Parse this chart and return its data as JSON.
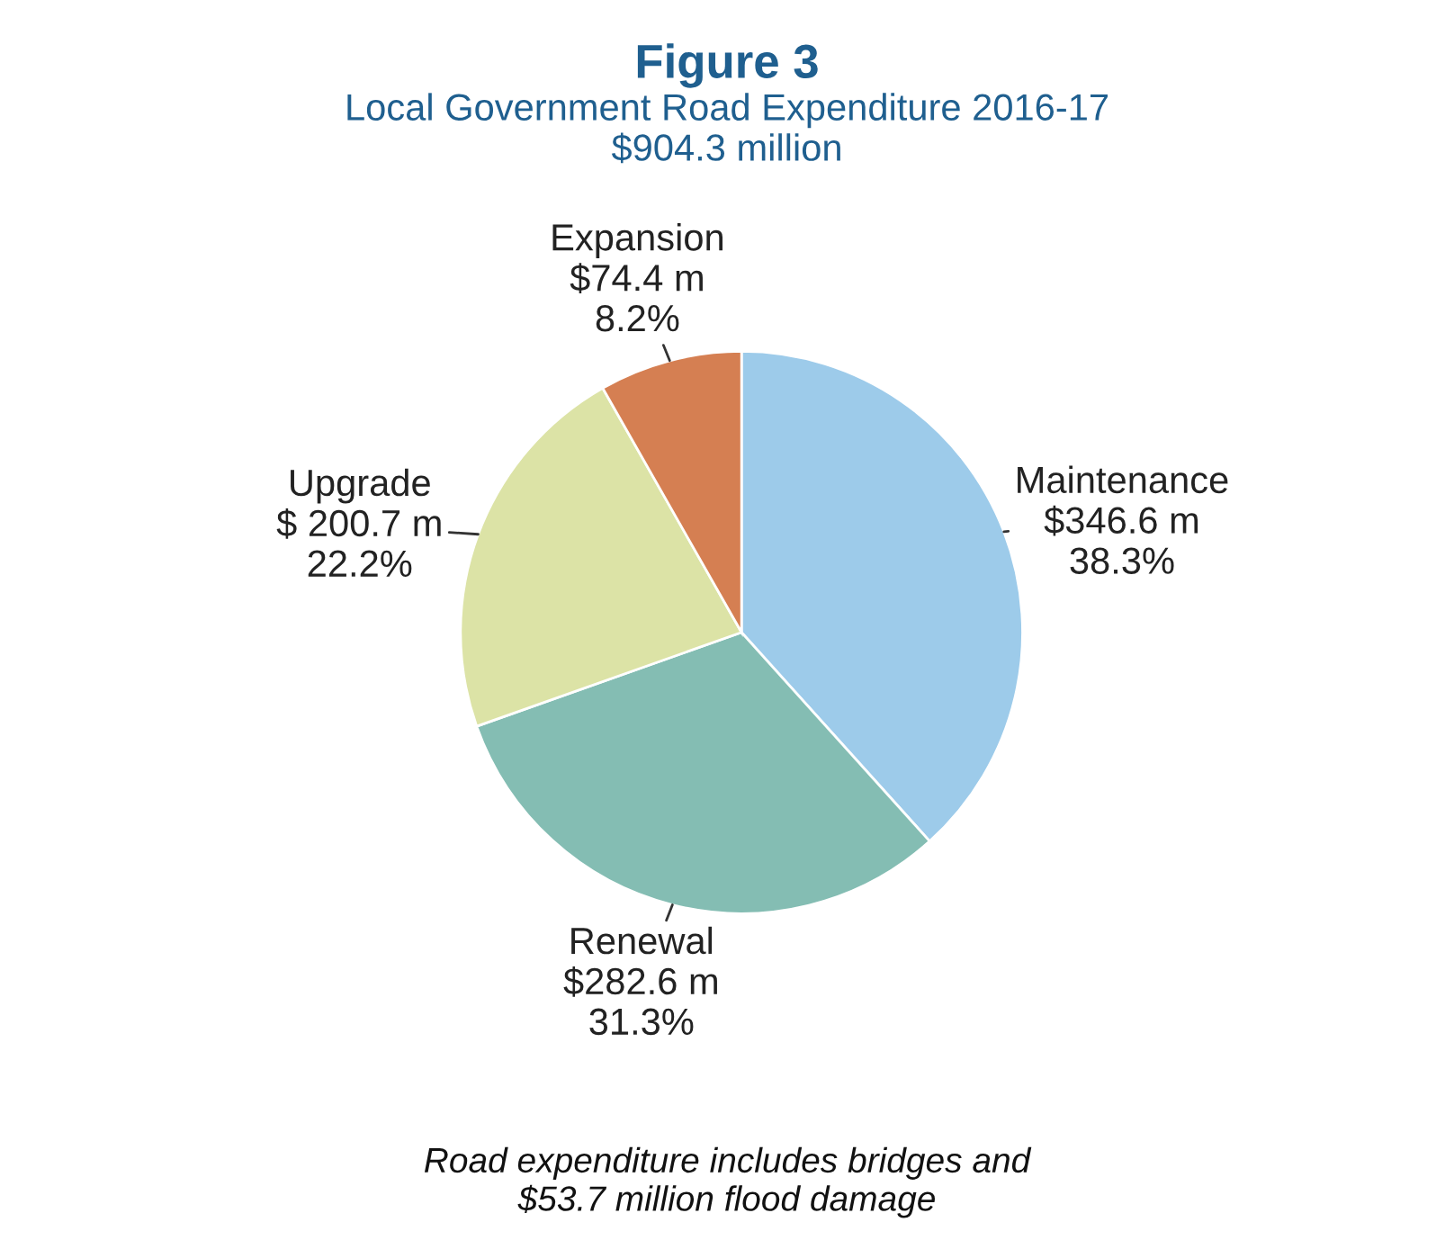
{
  "chart_data": {
    "type": "pie",
    "title": "Figure 3",
    "subtitle": "Local Government Road Expenditure 2016-17\n$904.3 million",
    "categories": [
      "Maintenance",
      "Renewal",
      "Upgrade",
      "Expansion"
    ],
    "values": [
      346.6,
      282.6,
      200.7,
      74.4
    ],
    "value_labels": [
      "$346.6 m\n38.3%",
      "$282.6 m\n31.3%",
      "$ 200.7 m\n22.2%",
      "$74.4 m\n8.2%"
    ],
    "colors": [
      "#9dcbea",
      "#84bdb3",
      "#dce3a6",
      "#d57f52"
    ],
    "annotations": [
      "Road expenditure includes bridges and\n$53.7 million flood damage"
    ],
    "legend": false
  }
}
